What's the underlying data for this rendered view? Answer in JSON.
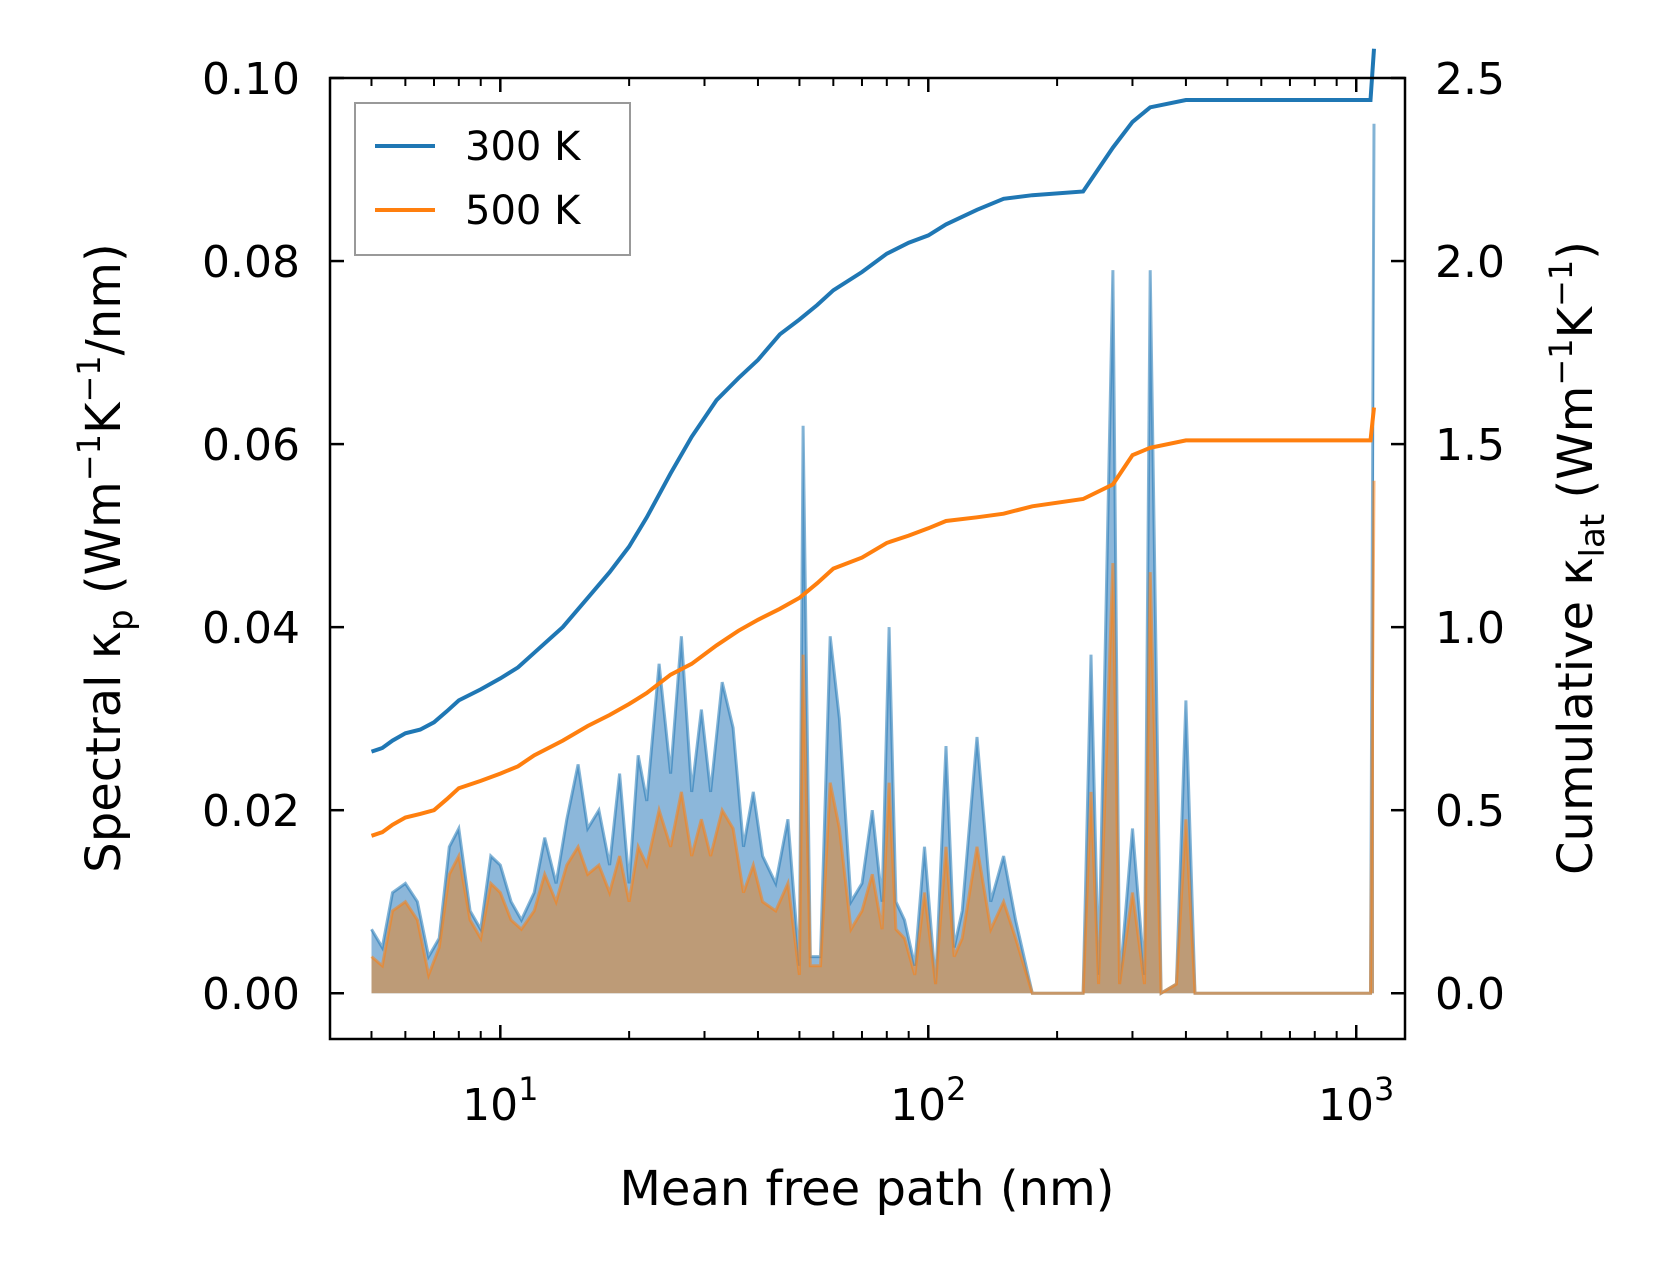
{
  "chart_data": {
    "type": "line",
    "x_scale": "log",
    "xlabel": "Mean free path (nm)",
    "ylabel_left": {
      "prefix": "Spectral κ",
      "sub": "p",
      "units_open": " (Wm",
      "sup1": "−1",
      "mid": "K",
      "sup2": "−1",
      "units_close": "/nm)"
    },
    "ylabel_right": {
      "prefix": "Cumulative κ",
      "sub": "lat",
      "units_open": " (Wm",
      "sup1": "−1",
      "mid": "K",
      "sup2": "−1",
      "units_close": ")"
    },
    "xlim": [
      4.0,
      1300
    ],
    "ylim_left": [
      -0.005,
      0.1
    ],
    "ylim_right": [
      -0.125,
      2.5
    ],
    "x_ticks": [
      {
        "value": 10,
        "base": "10",
        "exp": "1"
      },
      {
        "value": 100,
        "base": "10",
        "exp": "2"
      },
      {
        "value": 1000,
        "base": "10",
        "exp": "3"
      }
    ],
    "y_ticks_left": [
      "0.00",
      "0.02",
      "0.04",
      "0.06",
      "0.08",
      "0.10"
    ],
    "y_ticks_right": [
      "0.0",
      "0.5",
      "1.0",
      "1.5",
      "2.0",
      "2.5"
    ],
    "legend": {
      "location": "upper-left",
      "entries": [
        "300 K",
        "500 K"
      ]
    },
    "colors": {
      "300K": "#1f77b4",
      "500K": "#ff7f0e",
      "fill300": "#80afd6",
      "fill500": "#c2986c"
    },
    "cumulative": [
      {
        "name": "300 K",
        "x": [
          5,
          5.3,
          5.6,
          6,
          6.5,
          7,
          7.5,
          8,
          9,
          10,
          11,
          12,
          14,
          16,
          18,
          20,
          22,
          25,
          28,
          32,
          36,
          40,
          45,
          50,
          55,
          60,
          70,
          80,
          90,
          100,
          110,
          130,
          150,
          175,
          230,
          270,
          300,
          330,
          400,
          500,
          700,
          900,
          1080,
          1100
        ],
        "values": [
          0.66,
          0.67,
          0.69,
          0.71,
          0.72,
          0.74,
          0.77,
          0.8,
          0.83,
          0.86,
          0.89,
          0.93,
          1.0,
          1.08,
          1.15,
          1.22,
          1.3,
          1.42,
          1.52,
          1.62,
          1.68,
          1.73,
          1.8,
          1.84,
          1.88,
          1.92,
          1.97,
          2.02,
          2.05,
          2.07,
          2.1,
          2.14,
          2.17,
          2.18,
          2.19,
          2.31,
          2.38,
          2.42,
          2.44,
          2.44,
          2.44,
          2.44,
          2.44,
          2.58
        ]
      },
      {
        "name": "500 K",
        "x": [
          5,
          5.3,
          5.6,
          6,
          6.5,
          7,
          7.5,
          8,
          9,
          10,
          11,
          12,
          14,
          16,
          18,
          20,
          22,
          25,
          28,
          32,
          36,
          40,
          45,
          50,
          55,
          60,
          70,
          80,
          90,
          100,
          110,
          130,
          150,
          175,
          230,
          270,
          300,
          330,
          400,
          500,
          700,
          900,
          1080,
          1100
        ],
        "values": [
          0.43,
          0.44,
          0.46,
          0.48,
          0.49,
          0.5,
          0.53,
          0.56,
          0.58,
          0.6,
          0.62,
          0.65,
          0.69,
          0.73,
          0.76,
          0.79,
          0.82,
          0.87,
          0.9,
          0.95,
          0.99,
          1.02,
          1.05,
          1.08,
          1.12,
          1.16,
          1.19,
          1.23,
          1.25,
          1.27,
          1.29,
          1.3,
          1.31,
          1.33,
          1.35,
          1.39,
          1.47,
          1.49,
          1.51,
          1.51,
          1.51,
          1.51,
          1.51,
          1.6
        ]
      }
    ],
    "spectral": [
      {
        "name": "300 K",
        "x": [
          5,
          5.3,
          5.6,
          6,
          6.4,
          6.8,
          7.2,
          7.6,
          8,
          8.5,
          9,
          9.5,
          10,
          10.6,
          11.2,
          12,
          12.7,
          13.5,
          14.3,
          15.2,
          16,
          17,
          18,
          19,
          20,
          21,
          22,
          23.5,
          25,
          26.5,
          28,
          29.5,
          31,
          33,
          35,
          37,
          39,
          41,
          44,
          47,
          50,
          51,
          53,
          56,
          59,
          62,
          66,
          70,
          74,
          78,
          81,
          84,
          88,
          93,
          98,
          104,
          110,
          115,
          120,
          130,
          140,
          150,
          160,
          175,
          230,
          240,
          250,
          270,
          280,
          300,
          320,
          330,
          350,
          380,
          400,
          420,
          600,
          900,
          1080,
          1100
        ],
        "values": [
          0.007,
          0.005,
          0.011,
          0.012,
          0.01,
          0.004,
          0.006,
          0.016,
          0.018,
          0.009,
          0.007,
          0.015,
          0.014,
          0.01,
          0.008,
          0.011,
          0.017,
          0.012,
          0.019,
          0.025,
          0.018,
          0.02,
          0.014,
          0.024,
          0.012,
          0.026,
          0.021,
          0.036,
          0.024,
          0.039,
          0.022,
          0.031,
          0.022,
          0.034,
          0.029,
          0.016,
          0.022,
          0.015,
          0.012,
          0.019,
          0.003,
          0.062,
          0.004,
          0.004,
          0.039,
          0.03,
          0.01,
          0.012,
          0.02,
          0.01,
          0.04,
          0.01,
          0.008,
          0.003,
          0.016,
          0.001,
          0.027,
          0.005,
          0.009,
          0.028,
          0.01,
          0.015,
          0.008,
          0.0,
          0.0,
          0.037,
          0.002,
          0.079,
          0.001,
          0.018,
          0.002,
          0.079,
          0.0,
          0.001,
          0.032,
          0.0,
          0.0,
          0.0,
          0.0,
          0.095
        ]
      },
      {
        "name": "500 K",
        "x": [
          5,
          5.3,
          5.6,
          6,
          6.4,
          6.8,
          7.2,
          7.6,
          8,
          8.5,
          9,
          9.5,
          10,
          10.6,
          11.2,
          12,
          12.7,
          13.5,
          14.3,
          15.2,
          16,
          17,
          18,
          19,
          20,
          21,
          22,
          23.5,
          25,
          26.5,
          28,
          29.5,
          31,
          33,
          35,
          37,
          39,
          41,
          44,
          47,
          50,
          51,
          53,
          56,
          59,
          62,
          66,
          70,
          74,
          78,
          81,
          84,
          88,
          93,
          98,
          104,
          110,
          115,
          120,
          130,
          140,
          150,
          160,
          175,
          230,
          240,
          250,
          270,
          280,
          300,
          320,
          330,
          350,
          380,
          400,
          420,
          600,
          900,
          1080,
          1100
        ],
        "values": [
          0.004,
          0.003,
          0.009,
          0.01,
          0.008,
          0.002,
          0.005,
          0.013,
          0.015,
          0.008,
          0.006,
          0.012,
          0.011,
          0.008,
          0.007,
          0.009,
          0.013,
          0.01,
          0.014,
          0.016,
          0.013,
          0.014,
          0.011,
          0.015,
          0.01,
          0.016,
          0.014,
          0.02,
          0.016,
          0.022,
          0.015,
          0.019,
          0.015,
          0.02,
          0.018,
          0.011,
          0.014,
          0.01,
          0.009,
          0.012,
          0.002,
          0.037,
          0.003,
          0.003,
          0.023,
          0.018,
          0.007,
          0.009,
          0.013,
          0.007,
          0.023,
          0.007,
          0.006,
          0.002,
          0.011,
          0.001,
          0.016,
          0.004,
          0.006,
          0.016,
          0.007,
          0.01,
          0.006,
          0.0,
          0.0,
          0.022,
          0.001,
          0.047,
          0.001,
          0.011,
          0.001,
          0.046,
          0.0,
          0.001,
          0.019,
          0.0,
          0.0,
          0.0,
          0.0,
          0.056
        ]
      }
    ]
  }
}
